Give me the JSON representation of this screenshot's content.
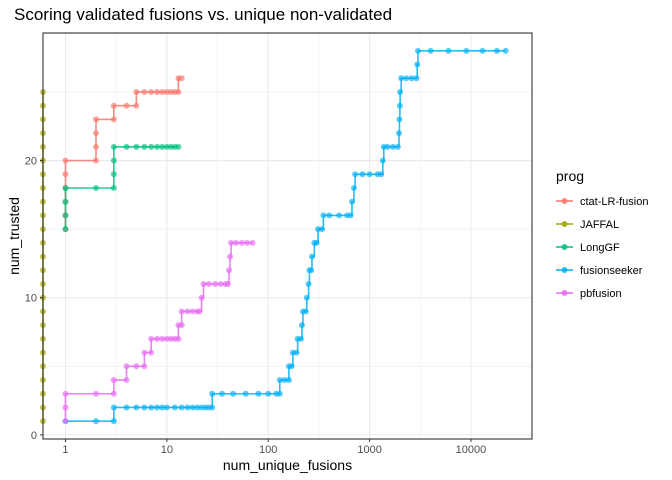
{
  "chart_data": {
    "type": "line",
    "title": "Scoring validated fusions vs. unique non-validated",
    "xlabel": "num_unique_fusions",
    "ylabel": "num_trusted",
    "x_scale": "log10",
    "xlim": [
      0.6,
      40000
    ],
    "ylim": [
      -0.3,
      29.3
    ],
    "x_ticks": [
      1,
      10,
      100,
      1000,
      10000
    ],
    "x_tick_labels": [
      "1",
      "10",
      "100",
      "1000",
      "10000"
    ],
    "y_ticks": [
      0,
      10,
      20
    ],
    "y_tick_labels": [
      "0",
      "10",
      "20"
    ],
    "grid": true,
    "legend_position": "right",
    "legend_title": "prog",
    "series": [
      {
        "name": "ctat-LR-fusion",
        "color": "#F8766D",
        "points": [
          [
            1,
            15
          ],
          [
            1,
            16
          ],
          [
            1,
            17
          ],
          [
            1,
            18
          ],
          [
            1,
            19
          ],
          [
            1,
            20
          ],
          [
            2,
            20
          ],
          [
            2,
            21
          ],
          [
            2,
            22
          ],
          [
            2,
            23
          ],
          [
            3,
            23
          ],
          [
            3,
            24
          ],
          [
            4,
            24
          ],
          [
            5,
            24
          ],
          [
            5,
            25
          ],
          [
            6,
            25
          ],
          [
            7,
            25
          ],
          [
            8,
            25
          ],
          [
            9,
            25
          ],
          [
            10,
            25
          ],
          [
            11,
            25
          ],
          [
            12,
            25
          ],
          [
            13,
            25
          ],
          [
            13,
            26
          ],
          [
            14,
            26
          ]
        ]
      },
      {
        "name": "JAFFAL",
        "color": "#A3A500",
        "points": [
          [
            0.6,
            1
          ],
          [
            0.6,
            2
          ],
          [
            0.6,
            3
          ],
          [
            0.6,
            4
          ],
          [
            0.6,
            5
          ],
          [
            0.6,
            6
          ],
          [
            0.6,
            7
          ],
          [
            0.6,
            8
          ],
          [
            0.6,
            9
          ],
          [
            0.6,
            10
          ],
          [
            0.6,
            11
          ],
          [
            0.6,
            12
          ],
          [
            0.6,
            13
          ],
          [
            0.6,
            14
          ],
          [
            0.6,
            15
          ],
          [
            0.6,
            16
          ],
          [
            0.6,
            17
          ],
          [
            0.6,
            18
          ],
          [
            0.6,
            19
          ],
          [
            0.6,
            20
          ],
          [
            0.6,
            21
          ],
          [
            0.6,
            22
          ],
          [
            0.6,
            23
          ],
          [
            0.6,
            24
          ],
          [
            0.6,
            25
          ]
        ]
      },
      {
        "name": "LongGF",
        "color": "#00BF7D",
        "points": [
          [
            1,
            15
          ],
          [
            1,
            16
          ],
          [
            1,
            17
          ],
          [
            1,
            18
          ],
          [
            2,
            18
          ],
          [
            3,
            18
          ],
          [
            3,
            19
          ],
          [
            3,
            20
          ],
          [
            3,
            21
          ],
          [
            4,
            21
          ],
          [
            5,
            21
          ],
          [
            6,
            21
          ],
          [
            7,
            21
          ],
          [
            8,
            21
          ],
          [
            9,
            21
          ],
          [
            10,
            21
          ],
          [
            11,
            21
          ],
          [
            12,
            21
          ],
          [
            13,
            21
          ]
        ]
      },
      {
        "name": "fusionseeker",
        "color": "#00B0F6",
        "points": [
          [
            1,
            1
          ],
          [
            2,
            1
          ],
          [
            3,
            1
          ],
          [
            3,
            2
          ],
          [
            4,
            2
          ],
          [
            5,
            2
          ],
          [
            6,
            2
          ],
          [
            7,
            2
          ],
          [
            8,
            2
          ],
          [
            9,
            2
          ],
          [
            10,
            2
          ],
          [
            12,
            2
          ],
          [
            14,
            2
          ],
          [
            16,
            2
          ],
          [
            18,
            2
          ],
          [
            20,
            2
          ],
          [
            22,
            2
          ],
          [
            24,
            2
          ],
          [
            26,
            2
          ],
          [
            28,
            2
          ],
          [
            28,
            3
          ],
          [
            35,
            3
          ],
          [
            45,
            3
          ],
          [
            60,
            3
          ],
          [
            80,
            3
          ],
          [
            100,
            3
          ],
          [
            120,
            3
          ],
          [
            130,
            3
          ],
          [
            130,
            4
          ],
          [
            145,
            4
          ],
          [
            160,
            4
          ],
          [
            160,
            5
          ],
          [
            170,
            5
          ],
          [
            175,
            6
          ],
          [
            190,
            6
          ],
          [
            195,
            7
          ],
          [
            210,
            7
          ],
          [
            215,
            8
          ],
          [
            220,
            9
          ],
          [
            235,
            9
          ],
          [
            240,
            10
          ],
          [
            250,
            11
          ],
          [
            255,
            12
          ],
          [
            265,
            12
          ],
          [
            270,
            13
          ],
          [
            285,
            14
          ],
          [
            300,
            14
          ],
          [
            310,
            15
          ],
          [
            340,
            15
          ],
          [
            350,
            16
          ],
          [
            400,
            16
          ],
          [
            500,
            16
          ],
          [
            600,
            16
          ],
          [
            650,
            16
          ],
          [
            670,
            17
          ],
          [
            700,
            18
          ],
          [
            720,
            19
          ],
          [
            850,
            19
          ],
          [
            1000,
            19
          ],
          [
            1200,
            19
          ],
          [
            1300,
            19
          ],
          [
            1350,
            20
          ],
          [
            1380,
            21
          ],
          [
            1500,
            21
          ],
          [
            1700,
            21
          ],
          [
            1900,
            21
          ],
          [
            1950,
            22
          ],
          [
            1970,
            23
          ],
          [
            1990,
            24
          ],
          [
            2000,
            25
          ],
          [
            2050,
            26
          ],
          [
            2300,
            26
          ],
          [
            2600,
            26
          ],
          [
            2900,
            26
          ],
          [
            2950,
            27
          ],
          [
            3000,
            28
          ],
          [
            4000,
            28
          ],
          [
            6000,
            28
          ],
          [
            9000,
            28
          ],
          [
            13000,
            28
          ],
          [
            18000,
            28
          ],
          [
            22000,
            28
          ]
        ]
      },
      {
        "name": "pbfusion",
        "color": "#E76BF3",
        "points": [
          [
            1,
            1
          ],
          [
            1,
            2
          ],
          [
            1,
            3
          ],
          [
            2,
            3
          ],
          [
            3,
            3
          ],
          [
            3,
            4
          ],
          [
            4,
            4
          ],
          [
            4,
            5
          ],
          [
            5,
            5
          ],
          [
            6,
            5
          ],
          [
            6,
            6
          ],
          [
            7,
            6
          ],
          [
            7,
            7
          ],
          [
            8,
            7
          ],
          [
            9,
            7
          ],
          [
            10,
            7
          ],
          [
            11,
            7
          ],
          [
            12,
            7
          ],
          [
            13,
            7
          ],
          [
            13,
            8
          ],
          [
            14,
            8
          ],
          [
            14,
            9
          ],
          [
            16,
            9
          ],
          [
            18,
            9
          ],
          [
            20,
            9
          ],
          [
            21,
            9
          ],
          [
            22,
            10
          ],
          [
            23,
            11
          ],
          [
            26,
            11
          ],
          [
            30,
            11
          ],
          [
            34,
            11
          ],
          [
            38,
            11
          ],
          [
            40,
            11
          ],
          [
            41,
            12
          ],
          [
            42,
            13
          ],
          [
            43,
            14
          ],
          [
            48,
            14
          ],
          [
            55,
            14
          ],
          [
            62,
            14
          ],
          [
            70,
            14
          ]
        ]
      }
    ]
  }
}
